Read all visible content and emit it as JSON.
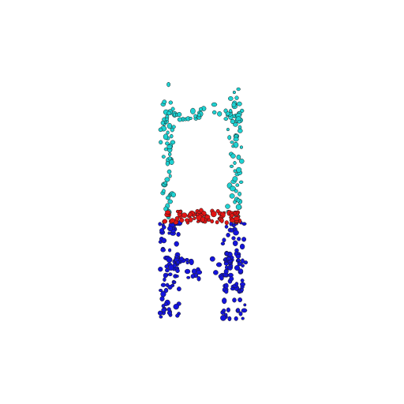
{
  "figure": {
    "kind": "segmented-point-cloud",
    "background": "#ffffff",
    "parts": [
      {
        "part": "back",
        "color": "#1ed2d2"
      },
      {
        "part": "seat",
        "color": "#e11414"
      },
      {
        "part": "legs",
        "color": "#1414dc"
      }
    ]
  }
}
